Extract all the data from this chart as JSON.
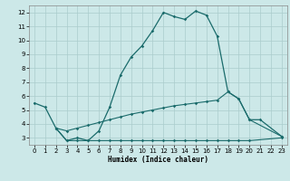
{
  "xlabel": "Humidex (Indice chaleur)",
  "bg_color": "#cce8e8",
  "grid_color": "#aacccc",
  "line_color": "#1a6b6b",
  "xlim": [
    -0.5,
    23.5
  ],
  "ylim": [
    2.5,
    12.5
  ],
  "yticks": [
    3,
    4,
    5,
    6,
    7,
    8,
    9,
    10,
    11,
    12
  ],
  "xticks": [
    0,
    1,
    2,
    3,
    4,
    5,
    6,
    7,
    8,
    9,
    10,
    11,
    12,
    13,
    14,
    15,
    16,
    17,
    18,
    19,
    20,
    21,
    22,
    23
  ],
  "line1_x": [
    0,
    1,
    2,
    3,
    4,
    5,
    6,
    7,
    8,
    9,
    10,
    11,
    12,
    13,
    14,
    15,
    16,
    17,
    18,
    19,
    20,
    21,
    23
  ],
  "line1_y": [
    5.5,
    5.2,
    3.7,
    2.8,
    3.0,
    2.8,
    3.5,
    5.2,
    7.5,
    8.8,
    9.6,
    10.7,
    12.0,
    11.7,
    11.5,
    12.1,
    11.8,
    10.3,
    6.3,
    5.8,
    4.3,
    4.3,
    3.1
  ],
  "line2_x": [
    2,
    3,
    4,
    5,
    6,
    7,
    8,
    9,
    10,
    11,
    12,
    13,
    14,
    15,
    16,
    17,
    18,
    19,
    20,
    23
  ],
  "line2_y": [
    3.7,
    2.8,
    2.8,
    2.8,
    2.8,
    2.8,
    2.8,
    2.8,
    2.8,
    2.8,
    2.8,
    2.8,
    2.8,
    2.8,
    2.8,
    2.8,
    2.8,
    2.8,
    2.8,
    3.0
  ],
  "line3_x": [
    2,
    3,
    4,
    5,
    6,
    7,
    8,
    9,
    10,
    11,
    12,
    13,
    14,
    15,
    16,
    17,
    18,
    19,
    20,
    23
  ],
  "line3_y": [
    3.7,
    3.5,
    3.7,
    3.9,
    4.1,
    4.3,
    4.5,
    4.7,
    4.85,
    5.0,
    5.15,
    5.3,
    5.4,
    5.5,
    5.6,
    5.7,
    6.3,
    5.8,
    4.3,
    3.1
  ]
}
